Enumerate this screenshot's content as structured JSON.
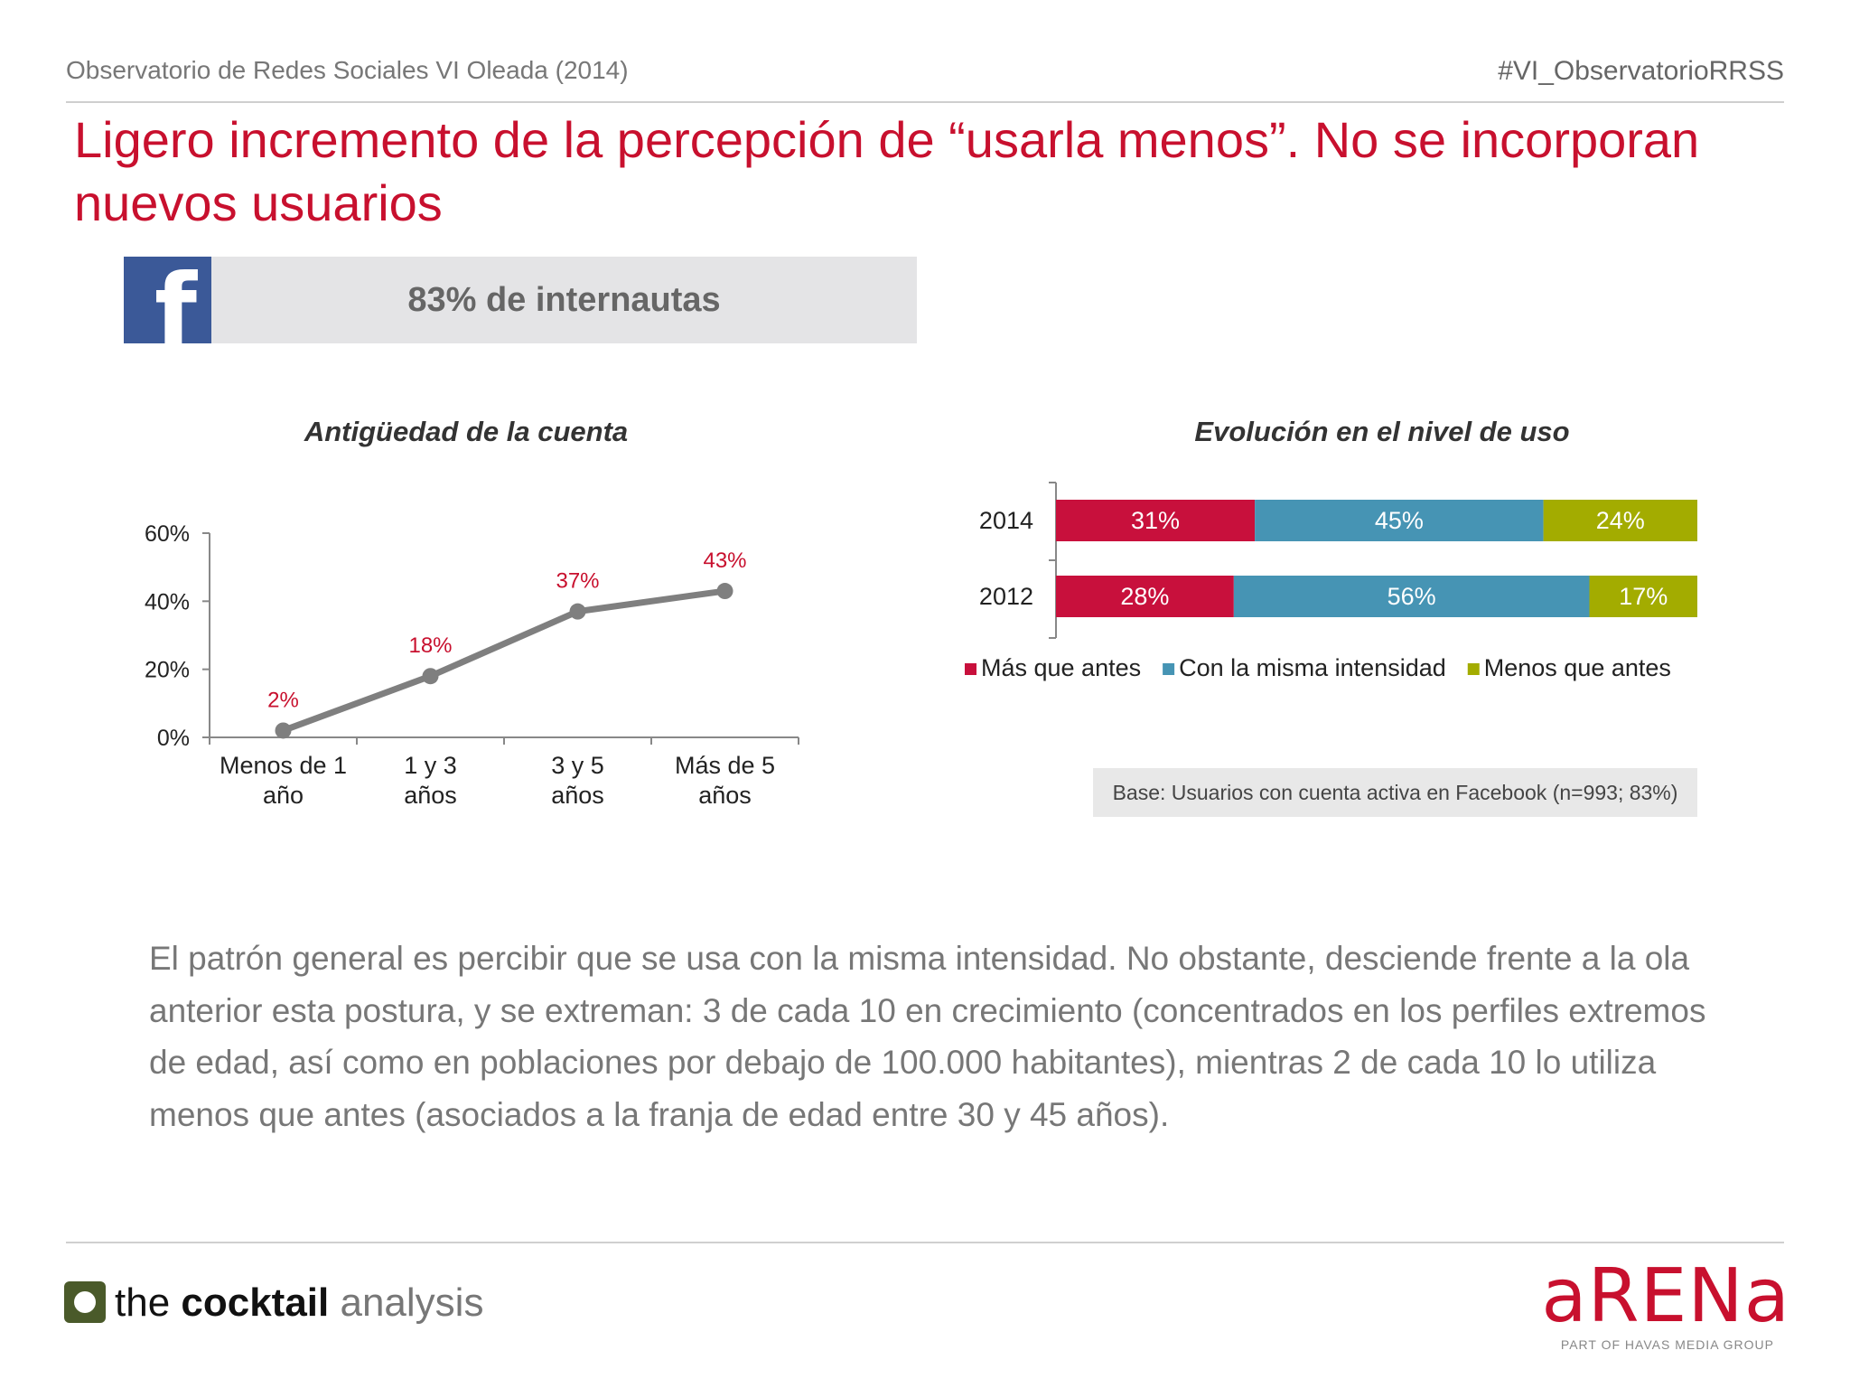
{
  "header": {
    "left": "Observatorio de Redes Sociales VI Oleada (2014)",
    "right": "#VI_ObservatorioRRSS"
  },
  "title": "Ligero incremento de la percepción de “usarla menos”. No se incorporan nuevos usuarios",
  "banner": {
    "icon": "facebook-icon",
    "text": "83% de internautas"
  },
  "chart_data": [
    {
      "type": "line",
      "title": "Antigüedad de la cuenta",
      "categories": [
        "Menos de 1 año",
        "1 y 3 años",
        "3 y 5 años",
        "Más de 5 años"
      ],
      "values": [
        2,
        18,
        37,
        43
      ],
      "data_labels": [
        "2%",
        "18%",
        "37%",
        "43%"
      ],
      "yticks": [
        "0%",
        "20%",
        "40%",
        "60%"
      ],
      "ylim": [
        0,
        60
      ],
      "xlabel": "",
      "ylabel": "",
      "colors": {
        "line": "#7f7f7f",
        "labels": "#c8102e"
      }
    },
    {
      "type": "bar",
      "orientation": "horizontal",
      "stacked": true,
      "title": "Evolución en el nivel de uso",
      "categories": [
        "2014",
        "2012"
      ],
      "series": [
        {
          "name": "Más que antes",
          "values": [
            31,
            28
          ],
          "labels": [
            "31%",
            "28%"
          ],
          "color": "#c8103c"
        },
        {
          "name": "Con la misma intensidad",
          "values": [
            45,
            56
          ],
          "labels": [
            "45%",
            "56%"
          ],
          "color": "#4694b4"
        },
        {
          "name": "Menos que antes",
          "values": [
            24,
            17
          ],
          "labels": [
            "24%",
            "17%"
          ],
          "color": "#a3ac00"
        }
      ],
      "legend_position": "bottom"
    }
  ],
  "base_note": "Base: Usuarios con cuenta activa en Facebook (n=993; 83%)",
  "body_text": "El patrón general es percibir que se usa con  la misma intensidad. No obstante, desciende frente a la ola anterior esta postura, y se extreman: 3 de cada 10 en crecimiento (concentrados en los perfiles extremos de edad, así como en poblaciones por debajo de 100.000 habitantes), mientras 2 de cada 10 lo utiliza menos que antes (asociados a la franja de edad entre 30 y 45 años).",
  "footer": {
    "left_logo": {
      "prefix": "the ",
      "bold": "cocktail",
      "suffix": " analysis"
    },
    "right_logo": {
      "word": "aRENa",
      "sub": "PART OF HAVAS MEDIA GROUP"
    }
  }
}
